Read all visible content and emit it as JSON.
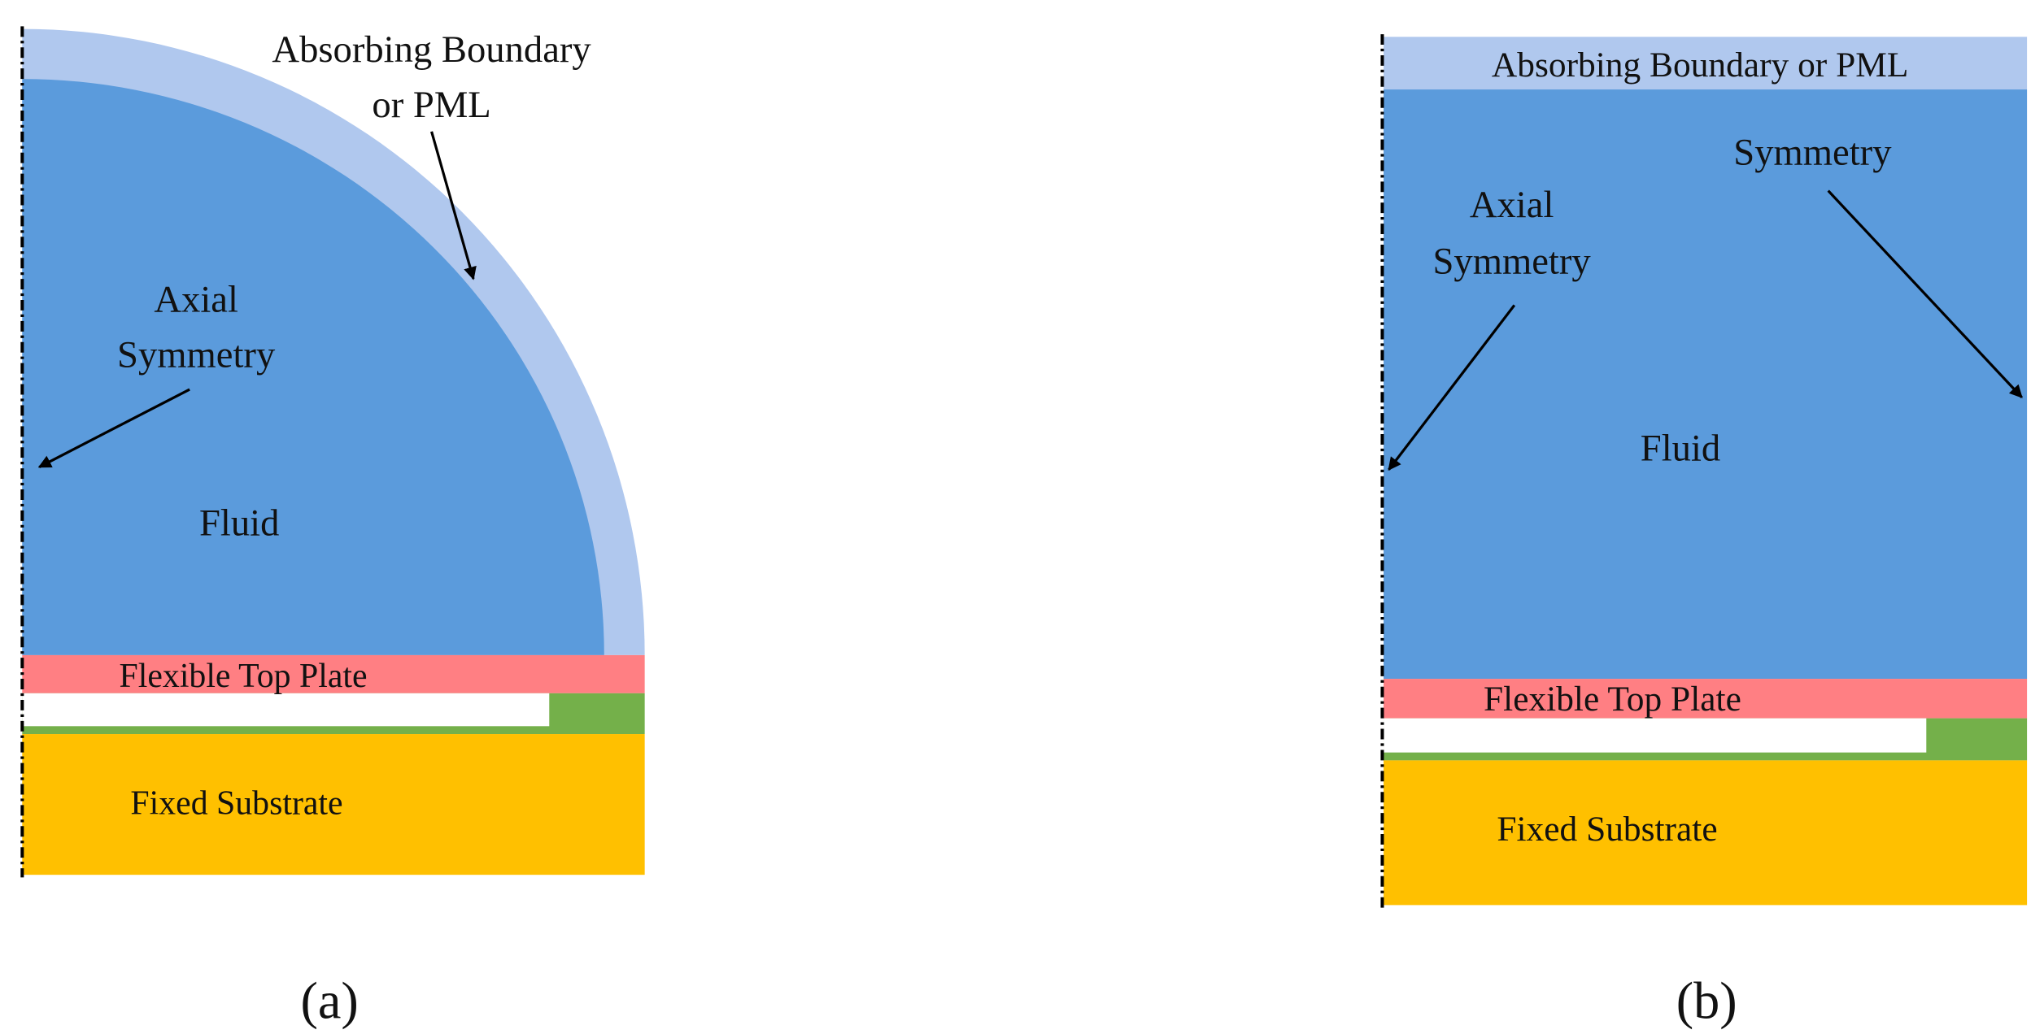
{
  "panel_a": {
    "pml_label": [
      "Absorbing Boundary",
      "or PML"
    ],
    "symmetry_label": [
      "Axial",
      "Symmetry"
    ],
    "fluid_label": "Fluid",
    "plate_label": "Flexible Top Plate",
    "substrate_label": "Fixed Substrate",
    "caption": "(a)"
  },
  "panel_b": {
    "pml_label": "Absorbing Boundary or PML",
    "symmetry_label": "Symmetry",
    "axial_label": [
      "Axial",
      "Symmetry"
    ],
    "fluid_label": "Fluid",
    "plate_label": "Flexible Top Plate",
    "substrate_label": "Fixed Substrate",
    "caption": "(b)"
  }
}
